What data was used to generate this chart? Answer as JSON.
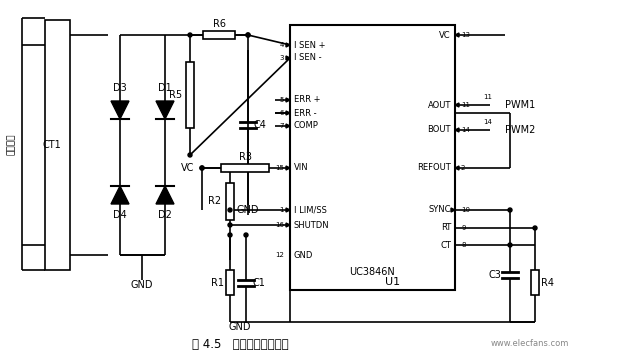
{
  "title": "图 4.5   电流检测反馈电路",
  "bg_color": "#ffffff",
  "watermark": "www.elecfans.com",
  "dc_bus_label": "直流母线",
  "line_color": "#000000",
  "line_width": 1.2,
  "font_size": 7,
  "fig_width": 6.37,
  "fig_height": 3.59
}
